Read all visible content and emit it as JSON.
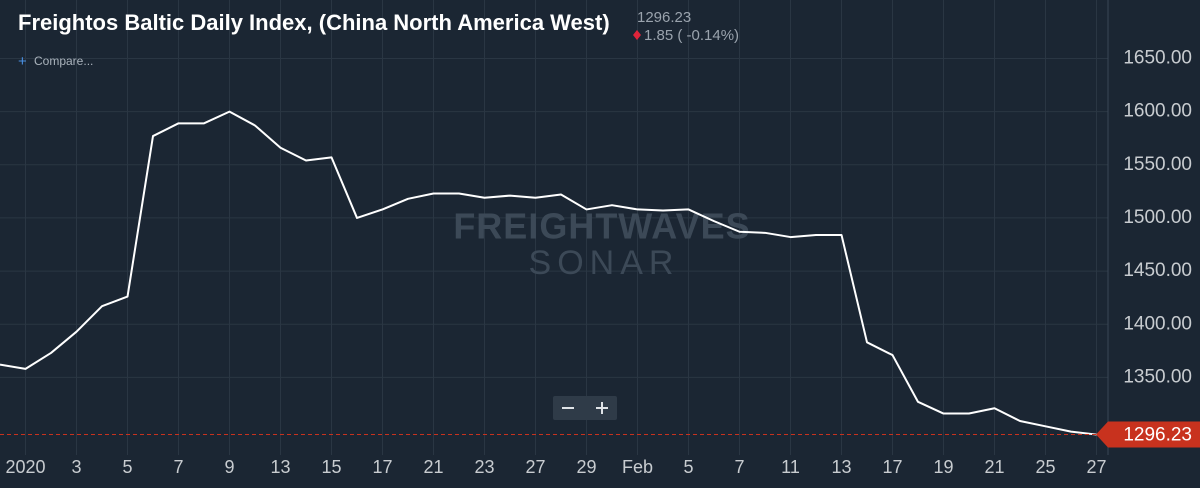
{
  "chart_data": {
    "type": "line",
    "title": "Freightos Baltic Daily Index, (China North America West)",
    "change": "1.85 ( -0.14%)",
    "compare": "Compare...",
    "watermark": {
      "top": "FREIGHTWAVES",
      "bottom": "SONAR"
    },
    "categories": [
      null,
      "2020",
      null,
      "3",
      null,
      "5",
      null,
      "7",
      null,
      "9",
      null,
      "13",
      null,
      "15",
      null,
      "17",
      null,
      "21",
      null,
      "23",
      null,
      "27",
      null,
      "29",
      null,
      "Feb",
      null,
      "5",
      null,
      "7",
      null,
      "11",
      null,
      "13",
      null,
      "17",
      null,
      "19",
      null,
      "21",
      null,
      "25",
      null,
      "27"
    ],
    "series": [
      {
        "name": "Freightos Baltic Daily Index",
        "color": "#ffffff",
        "values": [
          1362,
          1358,
          1373,
          1393,
          1417,
          1426,
          1577,
          1589,
          1589,
          1600,
          1587,
          1566,
          1554,
          1557,
          1500,
          1508,
          1518,
          1523,
          1523,
          1519,
          1521,
          1519,
          1522,
          1508,
          1512,
          1508,
          1507,
          1508,
          1497,
          1487,
          1486,
          1482,
          1484,
          1484,
          1383,
          1371,
          1327,
          1316,
          1316,
          1321,
          1309,
          1304,
          1299,
          1296.23
        ]
      }
    ],
    "ylim": [
      1277,
      1705
    ],
    "yticks": [
      {
        "value": 1350,
        "label": "1350.00"
      },
      {
        "value": 1400,
        "label": "1400.00"
      },
      {
        "value": 1450,
        "label": "1450.00"
      },
      {
        "value": 1500,
        "label": "1500.00"
      },
      {
        "value": 1550,
        "label": "1550.00"
      },
      {
        "value": 1600,
        "label": "1600.00"
      },
      {
        "value": 1650,
        "label": "1650.00"
      }
    ],
    "grid": true,
    "last_price_color": "#c8321e"
  }
}
